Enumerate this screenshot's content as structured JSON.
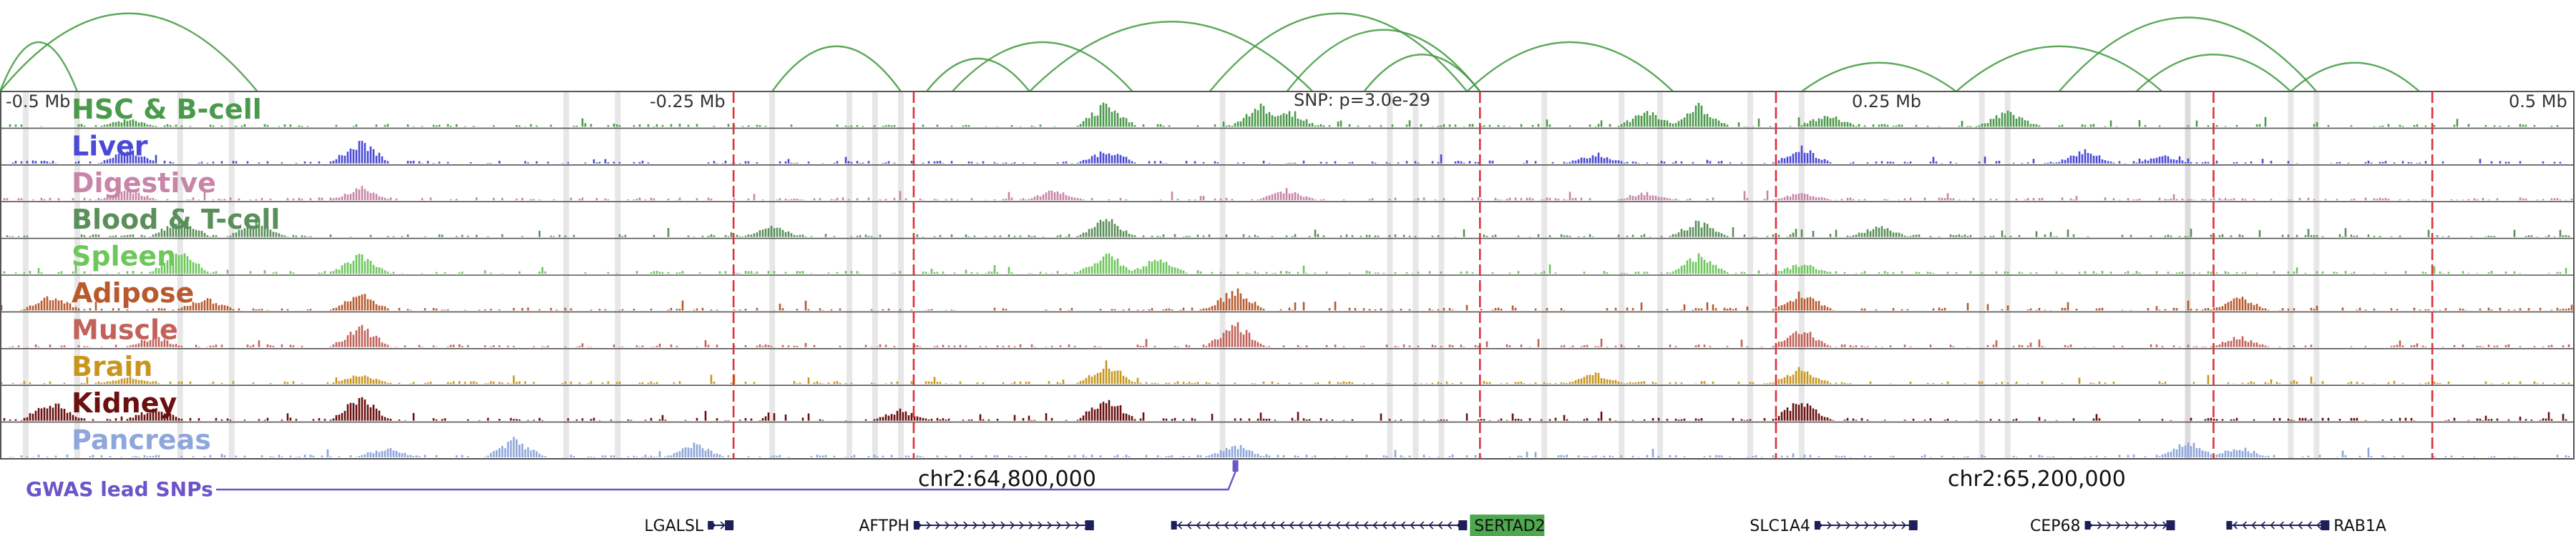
{
  "chart_data": {
    "type": "area",
    "title": "",
    "x_range": [
      -0.5,
      0.5
    ],
    "x_unit": "Mb",
    "axis_ticks": [
      "-0.5 Mb",
      "-0.25 Mb",
      "0.25 Mb",
      "0.5 Mb"
    ],
    "snp_annotation": "SNP: p=3.0e-29",
    "coordinates": [
      "chr2:64,800,000",
      "chr2:65,200,000"
    ],
    "gwas_track_label": "GWAS lead SNPs",
    "gwas_snp_positions": [
      -0.02
    ],
    "highlight_positions": [
      -0.215,
      -0.145,
      0.075,
      0.19,
      0.36,
      0.445
    ],
    "gray_band_positions": [
      -0.49,
      -0.47,
      -0.43,
      -0.41,
      -0.28,
      -0.26,
      -0.2,
      -0.17,
      -0.16,
      -0.15,
      -0.025,
      0.04,
      0.05,
      0.06,
      0.1,
      0.13,
      0.145,
      0.18,
      0.2,
      0.27,
      0.28,
      0.35,
      0.35,
      0.39,
      0.4
    ],
    "tracks": [
      {
        "name": "HSC & B-cell",
        "color": "#4b9a4b",
        "peaks": [
          [
            -0.01,
            0.8
          ],
          [
            0.0,
            0.7
          ],
          [
            0.14,
            0.6
          ],
          [
            0.16,
            0.8
          ],
          [
            -0.45,
            0.3
          ],
          [
            0.21,
            0.5
          ],
          [
            0.28,
            0.6
          ],
          [
            -0.07,
            0.9
          ]
        ]
      },
      {
        "name": "Liver",
        "color": "#4a4ad6",
        "peaks": [
          [
            -0.36,
            0.9
          ],
          [
            -0.45,
            0.5
          ],
          [
            0.2,
            0.6
          ],
          [
            0.12,
            0.4
          ],
          [
            -0.07,
            0.5
          ],
          [
            0.31,
            0.5
          ],
          [
            0.34,
            0.3
          ]
        ]
      },
      {
        "name": "Digestive",
        "color": "#c985a8",
        "peaks": [
          [
            -0.45,
            0.4
          ],
          [
            -0.36,
            0.5
          ],
          [
            0.0,
            0.4
          ],
          [
            0.14,
            0.3
          ],
          [
            -0.09,
            0.4
          ],
          [
            0.2,
            0.3
          ]
        ]
      },
      {
        "name": "Blood & T-cell",
        "color": "#5a8f5a",
        "peaks": [
          [
            -0.43,
            0.7
          ],
          [
            -0.4,
            0.6
          ],
          [
            -0.2,
            0.4
          ],
          [
            -0.07,
            0.7
          ],
          [
            0.16,
            0.6
          ],
          [
            0.23,
            0.4
          ]
        ]
      },
      {
        "name": "Spleen",
        "color": "#6dc75b",
        "peaks": [
          [
            -0.43,
            0.9
          ],
          [
            -0.36,
            0.7
          ],
          [
            -0.07,
            0.8
          ],
          [
            -0.05,
            0.6
          ],
          [
            0.16,
            0.7
          ],
          [
            0.2,
            0.4
          ]
        ]
      },
      {
        "name": "Adipose",
        "color": "#b85a2e",
        "peaks": [
          [
            -0.48,
            0.6
          ],
          [
            -0.36,
            0.7
          ],
          [
            -0.42,
            0.5
          ],
          [
            -0.02,
            0.8
          ],
          [
            0.2,
            0.7
          ],
          [
            0.37,
            0.5
          ]
        ]
      },
      {
        "name": "Muscle",
        "color": "#c2625a",
        "peaks": [
          [
            -0.36,
            0.8
          ],
          [
            -0.44,
            0.4
          ],
          [
            -0.02,
            0.9
          ],
          [
            0.2,
            0.7
          ],
          [
            0.37,
            0.4
          ]
        ]
      },
      {
        "name": "Brain",
        "color": "#c8961e",
        "peaks": [
          [
            -0.07,
            0.8
          ],
          [
            -0.36,
            0.4
          ],
          [
            0.12,
            0.4
          ],
          [
            0.2,
            0.6
          ],
          [
            -0.45,
            0.3
          ]
        ]
      },
      {
        "name": "Kidney",
        "color": "#6b0f0f",
        "peaks": [
          [
            -0.48,
            0.8
          ],
          [
            -0.36,
            0.9
          ],
          [
            -0.44,
            0.5
          ],
          [
            -0.07,
            0.9
          ],
          [
            0.2,
            0.8
          ],
          [
            -0.15,
            0.4
          ]
        ]
      },
      {
        "name": "Pancreas",
        "color": "#8ea6dc",
        "peaks": [
          [
            -0.3,
            0.7
          ],
          [
            -0.23,
            0.5
          ],
          [
            -0.35,
            0.4
          ],
          [
            -0.02,
            0.5
          ],
          [
            0.35,
            0.6
          ],
          [
            0.37,
            0.4
          ]
        ]
      }
    ],
    "loops": [
      {
        "from": -0.5,
        "to": -0.4,
        "height": 0.95
      },
      {
        "from": -0.5,
        "to": -0.47,
        "height": 0.6
      },
      {
        "from": -0.2,
        "to": -0.15,
        "height": 0.55
      },
      {
        "from": -0.13,
        "to": -0.06,
        "height": 0.6
      },
      {
        "from": -0.14,
        "to": -0.1,
        "height": 0.4
      },
      {
        "from": -0.1,
        "to": 0.01,
        "height": 0.85
      },
      {
        "from": -0.03,
        "to": 0.07,
        "height": 0.95
      },
      {
        "from": 0.0,
        "to": 0.075,
        "height": 0.75
      },
      {
        "from": 0.03,
        "to": 0.075,
        "height": 0.45
      },
      {
        "from": 0.07,
        "to": 0.15,
        "height": 0.6
      },
      {
        "from": 0.26,
        "to": 0.34,
        "height": 0.55
      },
      {
        "from": 0.3,
        "to": 0.4,
        "height": 0.9
      },
      {
        "from": 0.33,
        "to": 0.39,
        "height": 0.45
      },
      {
        "from": 0.39,
        "to": 0.44,
        "height": 0.35
      },
      {
        "from": 0.2,
        "to": 0.26,
        "height": 0.35
      }
    ],
    "genes": [
      {
        "name": "LGALSL",
        "start": -0.225,
        "end": -0.215,
        "strand": "+",
        "label_side": "left",
        "highlight": false
      },
      {
        "name": "AFTPH",
        "start": -0.145,
        "end": -0.075,
        "strand": "+",
        "label_side": "left",
        "highlight": false
      },
      {
        "name": "SERTAD2",
        "start": -0.045,
        "end": 0.07,
        "strand": "-",
        "label_side": "right",
        "highlight": true
      },
      {
        "name": "SLC1A4",
        "start": 0.205,
        "end": 0.245,
        "strand": "+",
        "label_side": "left",
        "highlight": false
      },
      {
        "name": "CEP68",
        "start": 0.31,
        "end": 0.345,
        "strand": "+",
        "label_side": "left",
        "highlight": false
      },
      {
        "name": "RAB1A",
        "start": 0.365,
        "end": 0.405,
        "strand": "-",
        "label_side": "right",
        "highlight": false
      }
    ]
  },
  "colors": {
    "highlight_line": "#e0303a",
    "gwas": "#6b55c8",
    "gene": "#1e1e5a",
    "loop": "#3f9a3f",
    "sertad2_bg": "#4ea84e"
  }
}
